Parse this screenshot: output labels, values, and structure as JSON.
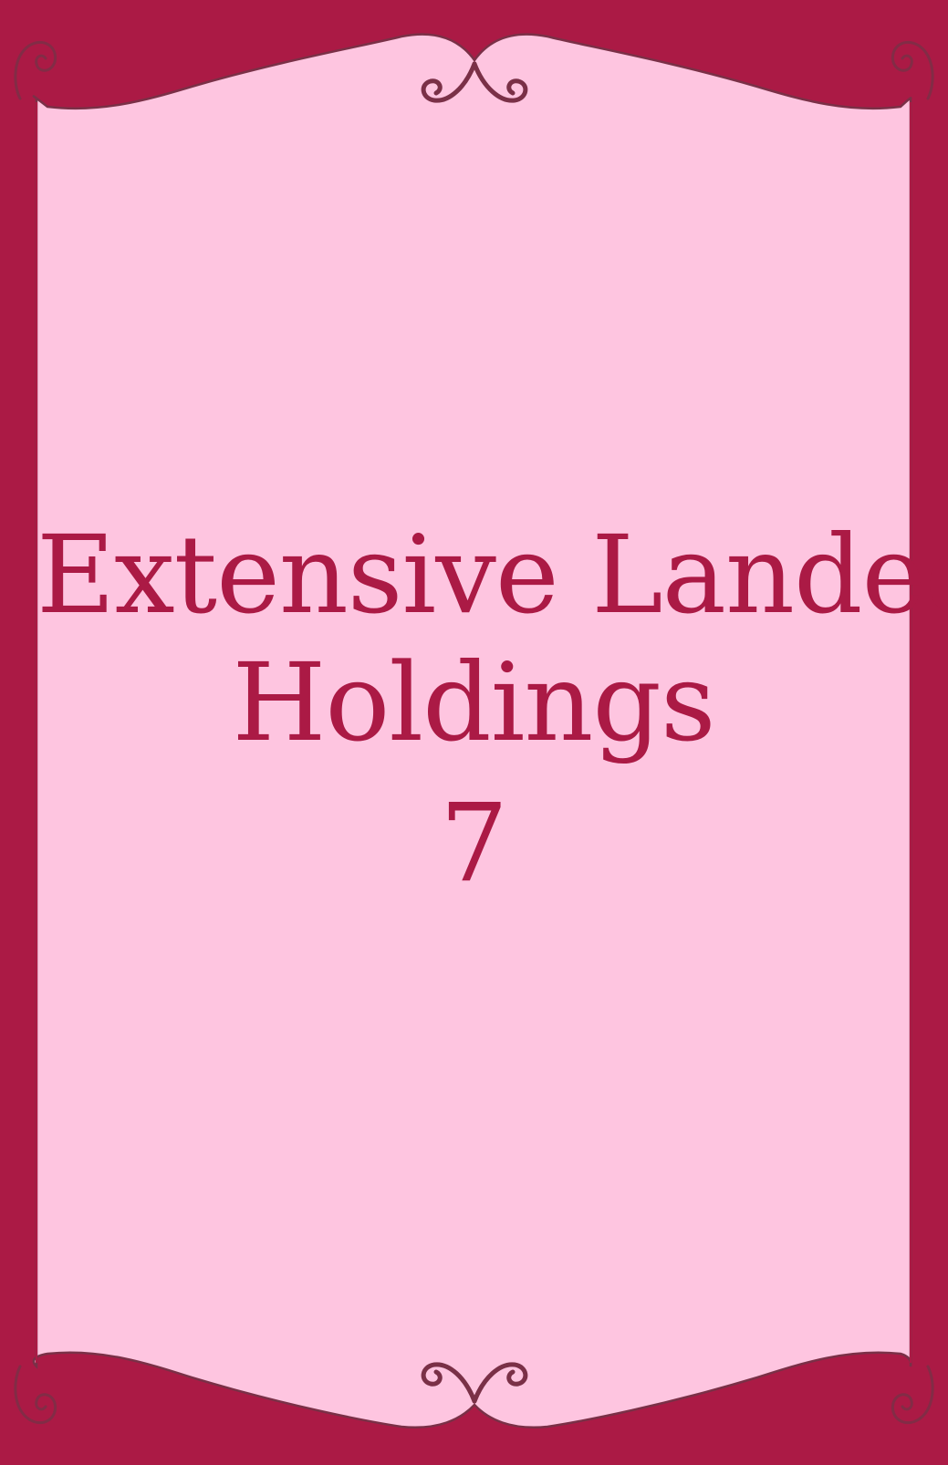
{
  "card": {
    "title_line1": "Extensive Landed",
    "title_line2": "Holdings",
    "number": "7"
  },
  "colors": {
    "frame": "#ab1a45",
    "panel": "#fec5e0",
    "text": "#ab1a45",
    "ornament": "#7a3047"
  },
  "icons": {
    "top_center": "double-scroll-ornament",
    "bottom_center": "double-scroll-ornament",
    "corners": "spiral-ornament"
  }
}
